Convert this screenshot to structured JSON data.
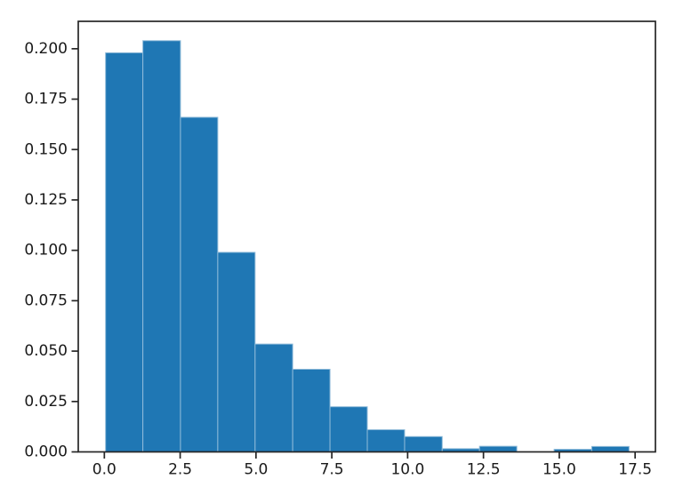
{
  "figure": {
    "background": "#ffffff",
    "bar_color": "#1f77b4",
    "bar_edge_seam_color": "#8fbbd9",
    "spine_color": "#262626",
    "tick_color": "#262626",
    "tick_label_color": "#1a1a1a"
  },
  "chart_data": {
    "type": "bar",
    "subtype": "histogram-density",
    "title": "",
    "xlabel": "",
    "ylabel": "",
    "grid": false,
    "legend": null,
    "xlim": [
      -0.86,
      18.17
    ],
    "ylim": [
      0,
      0.2136
    ],
    "xticks": {
      "values": [
        0.0,
        2.5,
        5.0,
        7.5,
        10.0,
        12.5,
        15.0,
        17.5
      ],
      "labels": [
        "0.0",
        "2.5",
        "5.0",
        "7.5",
        "10.0",
        "12.5",
        "15.0",
        "17.5"
      ]
    },
    "yticks": {
      "values": [
        0.0,
        0.025,
        0.05,
        0.075,
        0.1,
        0.125,
        0.15,
        0.175,
        0.2
      ],
      "labels": [
        "0.000",
        "0.025",
        "0.050",
        "0.075",
        "0.100",
        "0.125",
        "0.150",
        "0.175",
        "0.200"
      ]
    },
    "bin_edges": [
      0.04,
      1.27,
      2.51,
      3.74,
      4.97,
      6.21,
      7.44,
      8.67,
      9.9,
      11.14,
      12.37,
      13.6,
      14.83,
      16.07,
      17.3
    ],
    "densities": [
      0.198,
      0.204,
      0.166,
      0.099,
      0.0535,
      0.041,
      0.0224,
      0.011,
      0.0076,
      0.0016,
      0.0028,
      0.0,
      0.0013,
      0.0027
    ]
  }
}
